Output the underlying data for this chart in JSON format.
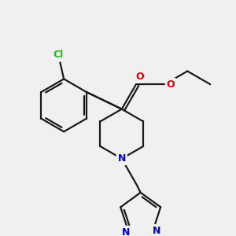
{
  "background_color": "#f0f0f0",
  "bond_color": "#1a1a1a",
  "atom_colors": {
    "Cl": "#22bb22",
    "O": "#dd0000",
    "N": "#0000cc",
    "C": "#1a1a1a"
  },
  "figsize": [
    3.0,
    3.0
  ],
  "dpi": 100
}
